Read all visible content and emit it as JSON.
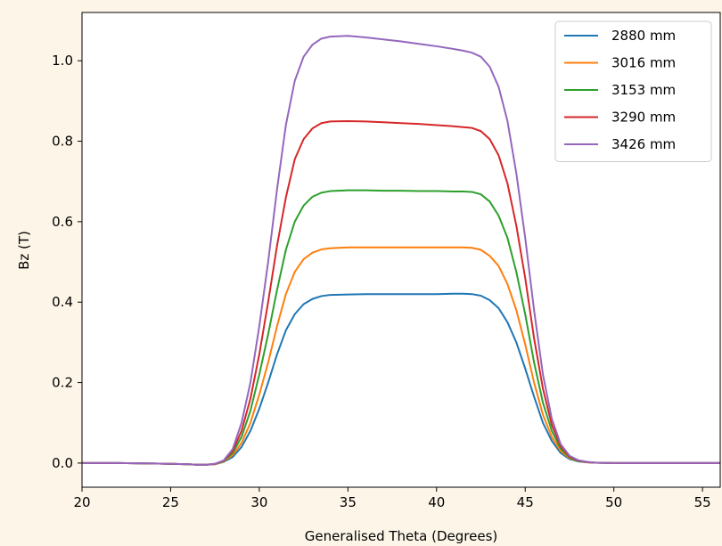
{
  "chart_data": {
    "type": "line",
    "xlabel": "Generalised Theta (Degrees)",
    "ylabel": "Bz (T)",
    "xlim": [
      20,
      56
    ],
    "ylim": [
      -0.06,
      1.12
    ],
    "grid": false,
    "legend_placement": "top-right",
    "x_ticks": [
      "20",
      "25",
      "30",
      "35",
      "40",
      "45",
      "50",
      "55"
    ],
    "y_ticks": [
      "0.0",
      "0.2",
      "0.4",
      "0.6",
      "0.8",
      "1.0"
    ],
    "x": [
      20,
      22,
      24,
      25,
      26,
      26.5,
      27,
      27.5,
      28,
      28.5,
      29,
      29.5,
      30,
      30.5,
      31,
      31.5,
      32,
      32.5,
      33,
      33.5,
      34,
      35,
      36,
      37,
      38,
      39,
      40,
      41,
      41.5,
      42,
      42.5,
      43,
      43.5,
      44,
      44.5,
      45,
      45.5,
      46,
      46.5,
      47,
      47.5,
      48,
      48.5,
      49,
      50,
      52,
      54,
      56
    ],
    "series": [
      {
        "name": "2880 mm",
        "color": "#1f77b4",
        "values": [
          0,
          0,
          -0.001,
          -0.002,
          -0.003,
          -0.004,
          -0.004,
          -0.003,
          0.003,
          0.015,
          0.04,
          0.08,
          0.135,
          0.2,
          0.27,
          0.33,
          0.37,
          0.395,
          0.408,
          0.415,
          0.418,
          0.419,
          0.42,
          0.42,
          0.42,
          0.42,
          0.42,
          0.421,
          0.421,
          0.42,
          0.416,
          0.405,
          0.385,
          0.35,
          0.3,
          0.235,
          0.165,
          0.1,
          0.055,
          0.025,
          0.01,
          0.004,
          0.002,
          0.001,
          0,
          0,
          0,
          0
        ]
      },
      {
        "name": "3016 mm",
        "color": "#ff7f0e",
        "values": [
          0,
          0,
          -0.001,
          -0.002,
          -0.003,
          -0.004,
          -0.004,
          -0.003,
          0.004,
          0.02,
          0.05,
          0.1,
          0.17,
          0.25,
          0.34,
          0.42,
          0.475,
          0.507,
          0.523,
          0.531,
          0.534,
          0.536,
          0.536,
          0.536,
          0.536,
          0.536,
          0.536,
          0.536,
          0.536,
          0.535,
          0.53,
          0.515,
          0.49,
          0.445,
          0.38,
          0.295,
          0.2,
          0.12,
          0.065,
          0.03,
          0.012,
          0.005,
          0.002,
          0.001,
          0,
          0,
          0,
          0
        ]
      },
      {
        "name": "3153 mm",
        "color": "#2ca02c",
        "values": [
          0,
          0,
          -0.001,
          -0.002,
          -0.003,
          -0.004,
          -0.004,
          -0.002,
          0.005,
          0.025,
          0.065,
          0.13,
          0.22,
          0.32,
          0.43,
          0.53,
          0.6,
          0.64,
          0.662,
          0.672,
          0.676,
          0.678,
          0.678,
          0.677,
          0.677,
          0.676,
          0.676,
          0.675,
          0.675,
          0.674,
          0.668,
          0.65,
          0.615,
          0.56,
          0.475,
          0.37,
          0.25,
          0.15,
          0.08,
          0.036,
          0.014,
          0.005,
          0.002,
          0.001,
          0,
          0,
          0,
          0
        ]
      },
      {
        "name": "3290 mm",
        "color": "#d62728",
        "values": [
          0,
          0,
          -0.001,
          -0.002,
          -0.003,
          -0.004,
          -0.004,
          -0.002,
          0.006,
          0.03,
          0.08,
          0.16,
          0.27,
          0.4,
          0.54,
          0.66,
          0.755,
          0.805,
          0.832,
          0.845,
          0.849,
          0.85,
          0.849,
          0.847,
          0.845,
          0.843,
          0.84,
          0.837,
          0.835,
          0.833,
          0.825,
          0.805,
          0.765,
          0.695,
          0.59,
          0.46,
          0.31,
          0.185,
          0.095,
          0.042,
          0.016,
          0.006,
          0.002,
          0.001,
          0,
          0,
          0,
          0
        ]
      },
      {
        "name": "3426 mm",
        "color": "#9467bd",
        "values": [
          0,
          0,
          -0.001,
          -0.002,
          -0.003,
          -0.004,
          -0.004,
          -0.002,
          0.007,
          0.035,
          0.1,
          0.2,
          0.34,
          0.5,
          0.68,
          0.84,
          0.95,
          1.01,
          1.04,
          1.055,
          1.06,
          1.062,
          1.058,
          1.053,
          1.048,
          1.042,
          1.036,
          1.029,
          1.025,
          1.02,
          1.01,
          0.985,
          0.935,
          0.85,
          0.72,
          0.56,
          0.38,
          0.22,
          0.11,
          0.047,
          0.018,
          0.007,
          0.003,
          0.001,
          0,
          0,
          0,
          0
        ]
      }
    ]
  }
}
